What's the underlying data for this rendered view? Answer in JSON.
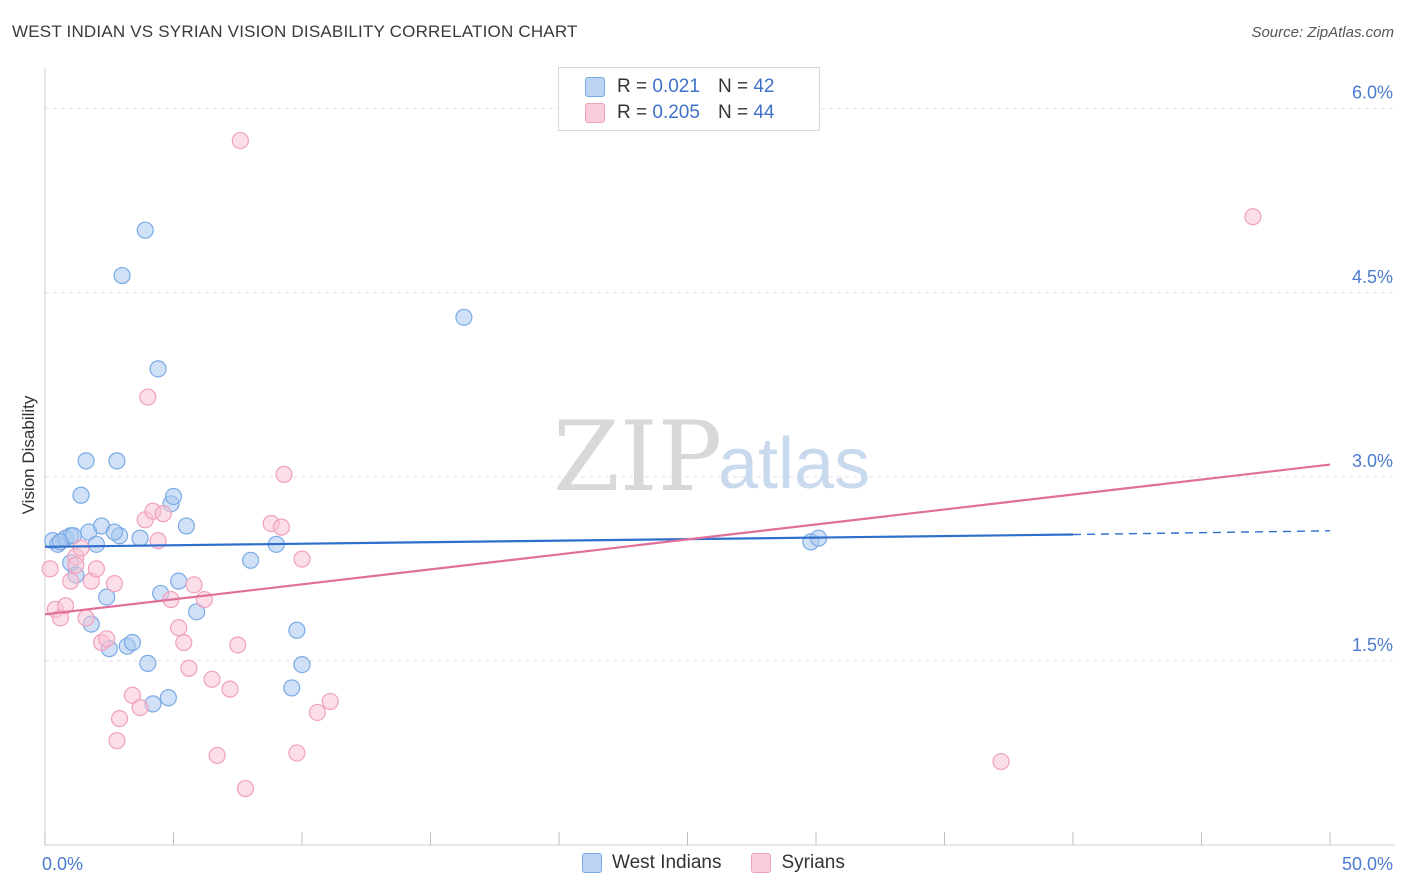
{
  "title": "WEST INDIAN VS SYRIAN VISION DISABILITY CORRELATION CHART",
  "source": "Source: ZipAtlas.com",
  "watermark": {
    "zip": "ZIP",
    "atlas": "atlas"
  },
  "legend": {
    "rows": [
      {
        "r_label": "R =",
        "r_value": "0.021",
        "n_label": "N =",
        "n_value": "42"
      },
      {
        "r_label": "R =",
        "r_value": "0.205",
        "n_label": "N =",
        "n_value": "44"
      }
    ]
  },
  "chart_data": {
    "type": "scatter",
    "title": "WEST INDIAN VS SYRIAN VISION DISABILITY CORRELATION CHART",
    "xlabel": "",
    "ylabel": "Vision Disability",
    "xlim": [
      0,
      50
    ],
    "ylim": [
      0,
      6.25
    ],
    "x_tick_labels": [
      "0.0%",
      "50.0%"
    ],
    "y_ticks": [
      1.5,
      3.0,
      4.5,
      6.0
    ],
    "y_tick_labels": [
      "1.5%",
      "3.0%",
      "4.5%",
      "6.0%"
    ],
    "grid": true,
    "series": [
      {
        "name": "West Indians",
        "color": "#7aaae6",
        "fill": "#a9c8f0",
        "line_color": "#2e6fcb",
        "trend": {
          "x0": 0,
          "y0": 2.43,
          "x1": 40,
          "y1": 2.53,
          "dash_to_x": 50,
          "dash_to_y": 2.56
        },
        "points": [
          [
            0.3,
            2.48
          ],
          [
            0.5,
            2.45
          ],
          [
            0.8,
            2.5
          ],
          [
            1.0,
            2.52
          ],
          [
            1.0,
            2.3
          ],
          [
            1.2,
            2.2
          ],
          [
            1.4,
            2.85
          ],
          [
            1.6,
            3.13
          ],
          [
            1.7,
            2.55
          ],
          [
            1.8,
            1.8
          ],
          [
            2.0,
            2.45
          ],
          [
            2.2,
            2.6
          ],
          [
            2.4,
            2.02
          ],
          [
            2.5,
            1.6
          ],
          [
            2.8,
            3.13
          ],
          [
            2.9,
            2.52
          ],
          [
            3.0,
            4.64
          ],
          [
            3.2,
            1.62
          ],
          [
            3.4,
            1.65
          ],
          [
            3.7,
            2.5
          ],
          [
            3.9,
            5.01
          ],
          [
            4.0,
            1.48
          ],
          [
            4.2,
            1.15
          ],
          [
            4.4,
            3.88
          ],
          [
            4.5,
            2.05
          ],
          [
            4.8,
            1.2
          ],
          [
            4.9,
            2.78
          ],
          [
            5.0,
            2.84
          ],
          [
            5.2,
            2.15
          ],
          [
            5.5,
            2.6
          ],
          [
            5.9,
            1.9
          ],
          [
            8.0,
            2.32
          ],
          [
            9.0,
            2.45
          ],
          [
            9.6,
            1.28
          ],
          [
            9.8,
            1.75
          ],
          [
            10.0,
            1.47
          ],
          [
            16.3,
            4.3
          ],
          [
            29.8,
            2.47
          ],
          [
            30.1,
            2.5
          ],
          [
            0.6,
            2.47
          ],
          [
            1.1,
            2.52
          ],
          [
            2.7,
            2.55
          ]
        ]
      },
      {
        "name": "Syrians",
        "color": "#f0a0bc",
        "fill": "#f7c3d4",
        "line_color": "#e0709a",
        "trend": {
          "x0": 0,
          "y0": 1.88,
          "x1": 50,
          "y1": 3.1
        },
        "points": [
          [
            0.2,
            2.25
          ],
          [
            0.4,
            1.92
          ],
          [
            0.6,
            1.85
          ],
          [
            0.8,
            1.95
          ],
          [
            1.0,
            2.15
          ],
          [
            1.2,
            2.35
          ],
          [
            1.4,
            2.42
          ],
          [
            1.6,
            1.85
          ],
          [
            1.8,
            2.15
          ],
          [
            2.0,
            2.25
          ],
          [
            2.2,
            1.65
          ],
          [
            2.4,
            1.68
          ],
          [
            2.7,
            2.13
          ],
          [
            2.8,
            0.85
          ],
          [
            2.9,
            1.03
          ],
          [
            3.4,
            1.22
          ],
          [
            3.7,
            1.12
          ],
          [
            3.9,
            2.65
          ],
          [
            4.0,
            3.65
          ],
          [
            4.2,
            2.72
          ],
          [
            4.4,
            2.48
          ],
          [
            4.6,
            2.7
          ],
          [
            4.9,
            2.0
          ],
          [
            5.2,
            1.77
          ],
          [
            5.4,
            1.65
          ],
          [
            5.6,
            1.44
          ],
          [
            5.8,
            2.12
          ],
          [
            6.2,
            2.0
          ],
          [
            6.5,
            1.35
          ],
          [
            6.7,
            0.73
          ],
          [
            7.2,
            1.27
          ],
          [
            7.5,
            1.63
          ],
          [
            7.6,
            5.74
          ],
          [
            7.8,
            0.46
          ],
          [
            8.8,
            2.62
          ],
          [
            9.2,
            2.59
          ],
          [
            9.3,
            3.02
          ],
          [
            9.8,
            0.75
          ],
          [
            10.0,
            2.33
          ],
          [
            10.6,
            1.08
          ],
          [
            11.1,
            1.17
          ],
          [
            1.2,
            2.28
          ],
          [
            37.2,
            0.68
          ],
          [
            47.0,
            5.12
          ]
        ]
      }
    ]
  }
}
